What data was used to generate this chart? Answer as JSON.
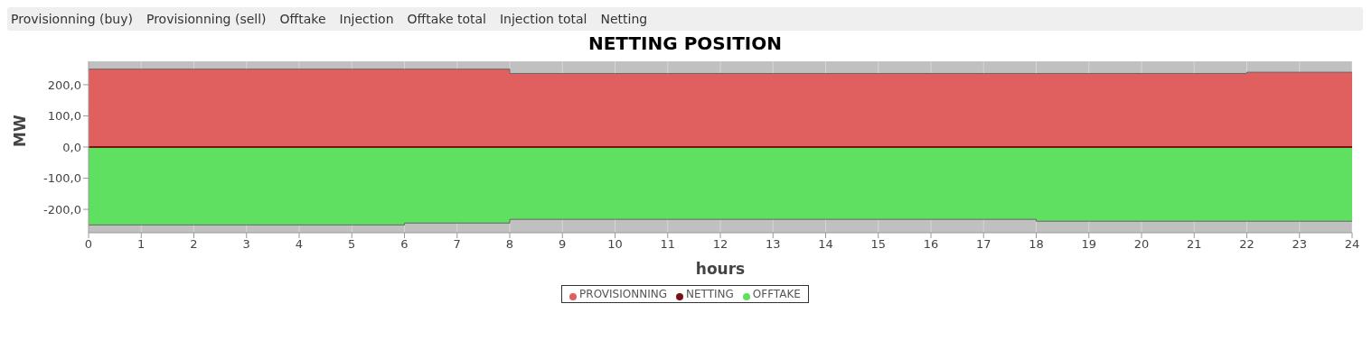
{
  "chart_data": {
    "type": "step",
    "title": "NETTING POSITION",
    "xlabel": "hours",
    "ylabel": "MW",
    "annotations": [
      "Provisionning (buy)",
      "Provisionning (sell)",
      "Offtake",
      "Injection",
      "Offtake total",
      "Injection total",
      "Netting"
    ],
    "x": [
      0,
      1,
      2,
      3,
      4,
      5,
      6,
      7,
      8,
      9,
      10,
      11,
      12,
      13,
      14,
      15,
      16,
      17,
      18,
      19,
      20,
      21,
      22,
      23,
      24
    ],
    "series": [
      {
        "name": "PROVISIONNING",
        "type": "area",
        "color": "#e06060",
        "values": [
          250,
          250,
          250,
          250,
          250,
          250,
          250,
          250,
          236,
          236,
          236,
          236,
          236,
          236,
          236,
          236,
          236,
          236,
          236,
          236,
          236,
          236,
          240,
          240,
          240
        ]
      },
      {
        "name": "NETTING",
        "type": "line",
        "color": "#7a1010",
        "values": [
          0,
          0,
          0,
          0,
          0,
          0,
          0,
          0,
          0,
          0,
          0,
          0,
          0,
          0,
          0,
          0,
          0,
          0,
          0,
          0,
          0,
          0,
          0,
          0,
          0
        ]
      },
      {
        "name": "OFFTAKE",
        "type": "area",
        "color": "#5fe060",
        "values": [
          -250,
          -250,
          -250,
          -250,
          -250,
          -250,
          -244,
          -244,
          -232,
          -232,
          -232,
          -232,
          -232,
          -232,
          -232,
          -232,
          -232,
          -232,
          -238,
          -238,
          -238,
          -238,
          -238,
          -238,
          -238
        ]
      }
    ],
    "xlim": [
      0,
      24
    ],
    "xticks": [
      0,
      1,
      2,
      3,
      4,
      5,
      6,
      7,
      8,
      9,
      10,
      11,
      12,
      13,
      14,
      15,
      16,
      17,
      18,
      19,
      20,
      21,
      22,
      23,
      24
    ],
    "ylim": [
      -275,
      275
    ],
    "yticks": [
      {
        "value": -200,
        "label": "-200,0"
      },
      {
        "value": -100,
        "label": "-100,0"
      },
      {
        "value": 0,
        "label": "0,0"
      },
      {
        "value": 100,
        "label": "100,0"
      },
      {
        "value": 200,
        "label": "200,0"
      }
    ],
    "grid": true,
    "legend": "bottom"
  }
}
